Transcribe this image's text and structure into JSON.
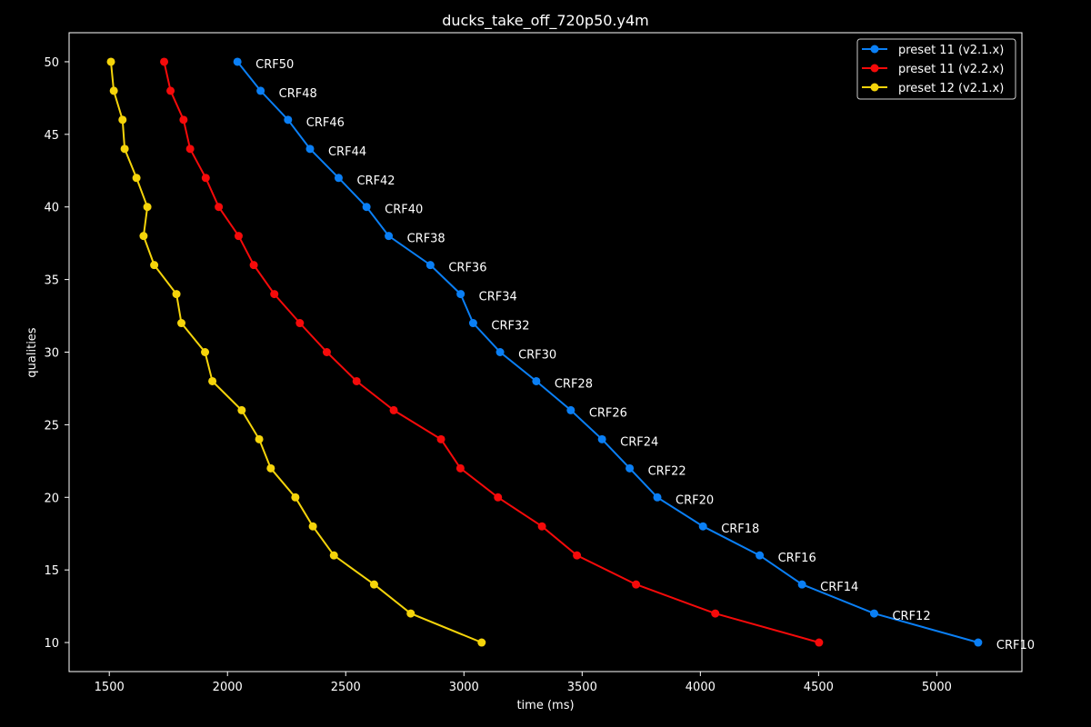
{
  "chart_data": {
    "type": "line",
    "title": "ducks_take_off_720p50.y4m",
    "xlabel": "time (ms)",
    "ylabel": "qualities",
    "xlim": [
      1330,
      5360
    ],
    "ylim": [
      8,
      52
    ],
    "xticks": [
      1500,
      2000,
      2500,
      3000,
      3500,
      4000,
      4500,
      5000
    ],
    "yticks": [
      10,
      15,
      20,
      25,
      30,
      35,
      40,
      45,
      50
    ],
    "legend_position": "top-right",
    "series": [
      {
        "name": "preset 11 (v2.1.x)",
        "color": "#0a7ff5",
        "x": [
          2042,
          2140,
          2256,
          2349,
          2470,
          2588,
          2682,
          2858,
          2986,
          3039,
          3153,
          3306,
          3452,
          3584,
          3701,
          3818,
          4011,
          4251,
          4430,
          4735,
          5175
        ],
        "y": [
          50,
          48,
          46,
          44,
          42,
          40,
          38,
          36,
          34,
          32,
          30,
          28,
          26,
          24,
          22,
          20,
          18,
          16,
          14,
          12,
          10
        ],
        "labels": [
          "CRF50",
          "CRF48",
          "CRF46",
          "CRF44",
          "CRF42",
          "CRF40",
          "CRF38",
          "CRF36",
          "CRF34",
          "CRF32",
          "CRF30",
          "CRF28",
          "CRF26",
          "CRF24",
          "CRF22",
          "CRF20",
          "CRF18",
          "CRF16",
          "CRF14",
          "CRF12",
          "CRF10"
        ]
      },
      {
        "name": "preset 11 (v2.2.x)",
        "color": "#f50a0a",
        "x": [
          1732,
          1759,
          1814,
          1842,
          1908,
          1963,
          2047,
          2111,
          2198,
          2306,
          2420,
          2546,
          2703,
          2903,
          2985,
          3144,
          3330,
          3478,
          3728,
          4063,
          4502
        ],
        "y": [
          50,
          48,
          46,
          44,
          42,
          40,
          38,
          36,
          34,
          32,
          30,
          28,
          26,
          24,
          22,
          20,
          18,
          16,
          14,
          12,
          10
        ]
      },
      {
        "name": "preset 12 (v2.1.x)",
        "color": "#f5d40a",
        "x": [
          1507,
          1519,
          1556,
          1565,
          1615,
          1661,
          1645,
          1690,
          1784,
          1805,
          1905,
          1936,
          2060,
          2134,
          2183,
          2287,
          2361,
          2450,
          2620,
          2775,
          3075
        ],
        "y": [
          50,
          48,
          46,
          44,
          42,
          40,
          38,
          36,
          34,
          32,
          30,
          28,
          26,
          24,
          22,
          20,
          18,
          16,
          14,
          12,
          10
        ]
      }
    ]
  }
}
